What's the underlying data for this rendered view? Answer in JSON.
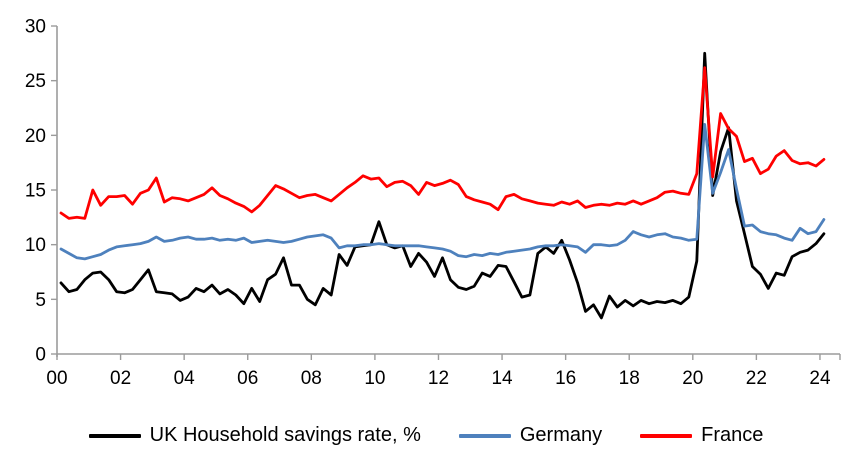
{
  "chart_data": {
    "type": "line",
    "title": "",
    "xlabel": "",
    "ylabel": "",
    "frequency": "quarterly",
    "x_range_description": "2000 Q1 to 2024 Q1",
    "grid": "off",
    "legend_position": "bottom",
    "background_color": "#ffffff",
    "axis_color": "#9b9b9b",
    "x_axis": {
      "tick_labels": [
        "00",
        "02",
        "04",
        "06",
        "08",
        "10",
        "12",
        "14",
        "16",
        "18",
        "20",
        "22",
        "24"
      ],
      "tick_step_years": 2
    },
    "y_axis": {
      "ticks": [
        0,
        5,
        10,
        15,
        20,
        25,
        30
      ],
      "range": [
        0,
        30
      ]
    },
    "series": [
      {
        "name": "UK Household savings rate, %",
        "color": "#000000",
        "values": [
          6.5,
          5.7,
          5.9,
          6.8,
          7.4,
          7.5,
          6.8,
          5.7,
          5.6,
          5.9,
          6.8,
          7.7,
          5.7,
          5.6,
          5.5,
          4.9,
          5.2,
          6.0,
          5.7,
          6.3,
          5.5,
          5.9,
          5.4,
          4.6,
          6.0,
          4.8,
          6.8,
          7.3,
          8.8,
          6.3,
          6.3,
          5.0,
          4.5,
          6.0,
          5.4,
          9.1,
          8.1,
          9.8,
          9.9,
          10.0,
          12.1,
          10.0,
          9.7,
          9.9,
          8.0,
          9.2,
          8.4,
          7.1,
          8.8,
          6.8,
          6.1,
          5.9,
          6.2,
          7.4,
          7.1,
          8.1,
          8.0,
          6.6,
          5.2,
          5.4,
          9.2,
          9.8,
          9.2,
          10.4,
          8.6,
          6.5,
          3.9,
          4.5,
          3.3,
          5.3,
          4.3,
          4.9,
          4.4,
          4.9,
          4.6,
          4.8,
          4.7,
          4.9,
          4.6,
          5.2,
          8.5,
          27.5,
          14.5,
          18.5,
          20.7,
          14.0,
          11.0,
          8.0,
          7.3,
          6.0,
          7.4,
          7.2,
          8.9,
          9.3,
          9.5,
          10.1,
          11.0
        ]
      },
      {
        "name": "Germany",
        "color": "#4e81bd",
        "values": [
          9.6,
          9.2,
          8.8,
          8.7,
          8.9,
          9.1,
          9.5,
          9.8,
          9.9,
          10.0,
          10.1,
          10.3,
          10.7,
          10.3,
          10.4,
          10.6,
          10.7,
          10.5,
          10.5,
          10.6,
          10.4,
          10.5,
          10.4,
          10.6,
          10.2,
          10.3,
          10.4,
          10.3,
          10.2,
          10.3,
          10.5,
          10.7,
          10.8,
          10.9,
          10.6,
          9.7,
          9.9,
          9.9,
          10.0,
          10.0,
          10.1,
          10.0,
          9.9,
          9.9,
          9.9,
          9.9,
          9.8,
          9.7,
          9.6,
          9.4,
          9.0,
          8.9,
          9.1,
          9.0,
          9.2,
          9.1,
          9.3,
          9.4,
          9.5,
          9.6,
          9.8,
          9.9,
          9.9,
          10.0,
          9.9,
          9.8,
          9.3,
          10.0,
          10.0,
          9.9,
          10.0,
          10.4,
          11.2,
          10.9,
          10.7,
          10.9,
          11.0,
          10.7,
          10.6,
          10.4,
          10.5,
          21.0,
          14.7,
          16.6,
          18.7,
          15.1,
          11.7,
          11.8,
          11.2,
          11.0,
          10.9,
          10.6,
          10.4,
          11.5,
          11.0,
          11.2,
          12.3
        ]
      },
      {
        "name": "France",
        "color": "#ff0000",
        "values": [
          12.9,
          12.4,
          12.5,
          12.4,
          15.0,
          13.6,
          14.4,
          14.4,
          14.5,
          13.7,
          14.7,
          15.0,
          16.1,
          13.9,
          14.3,
          14.2,
          14.0,
          14.3,
          14.6,
          15.2,
          14.5,
          14.2,
          13.8,
          13.5,
          13.0,
          13.6,
          14.5,
          15.4,
          15.1,
          14.7,
          14.3,
          14.5,
          14.6,
          14.3,
          14.0,
          14.6,
          15.2,
          15.7,
          16.3,
          16.0,
          16.1,
          15.3,
          15.7,
          15.8,
          15.4,
          14.6,
          15.7,
          15.4,
          15.6,
          15.9,
          15.5,
          14.4,
          14.1,
          13.9,
          13.7,
          13.2,
          14.4,
          14.6,
          14.2,
          14.0,
          13.8,
          13.7,
          13.6,
          13.9,
          13.7,
          14.0,
          13.4,
          13.6,
          13.7,
          13.6,
          13.8,
          13.7,
          14.0,
          13.7,
          14.0,
          14.3,
          14.8,
          14.9,
          14.7,
          14.6,
          16.5,
          26.2,
          16.2,
          22.0,
          20.6,
          19.9,
          17.6,
          17.9,
          16.5,
          16.9,
          18.1,
          18.6,
          17.7,
          17.4,
          17.5,
          17.2,
          17.8
        ]
      }
    ]
  }
}
